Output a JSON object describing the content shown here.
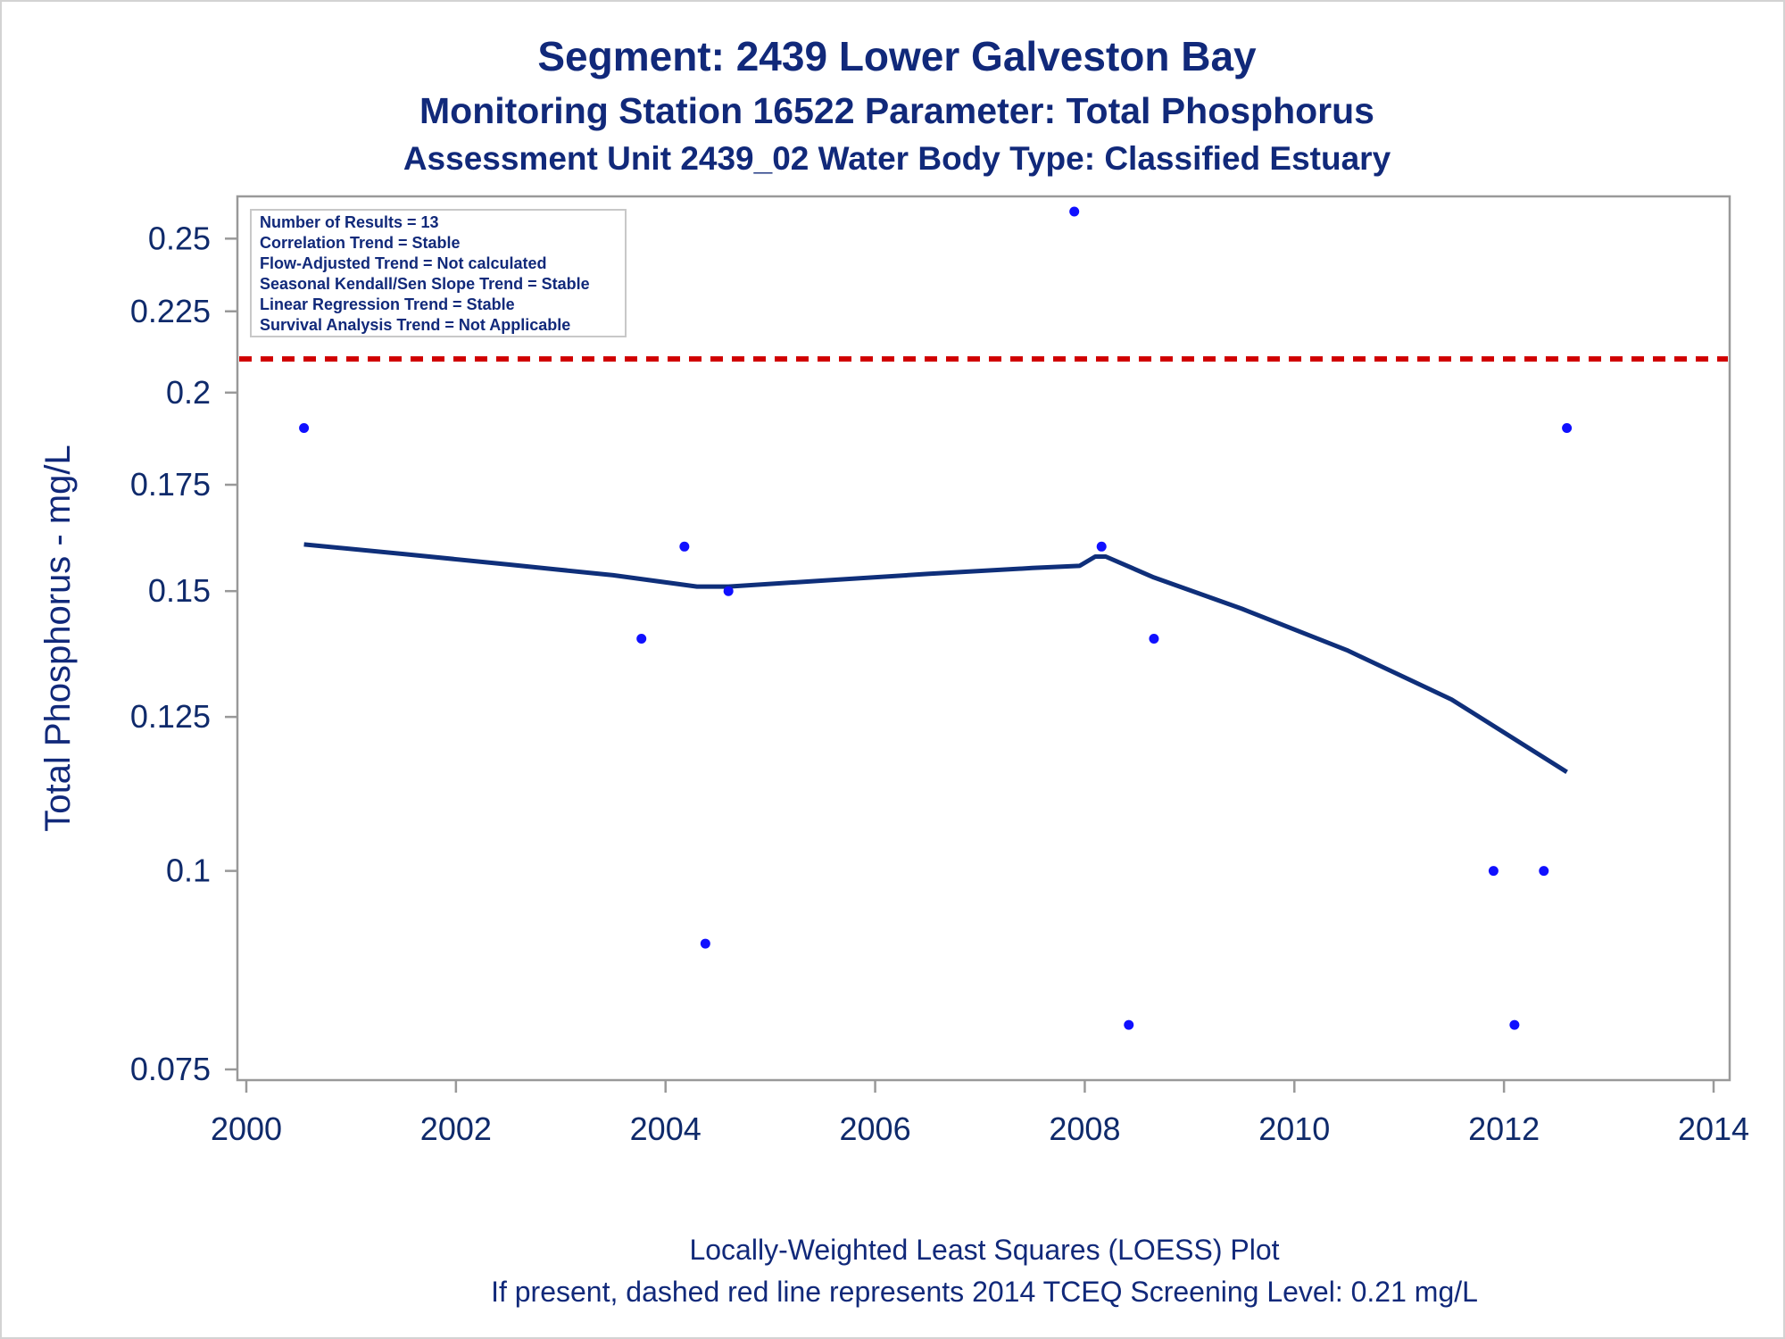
{
  "chart_data": {
    "type": "scatter",
    "title": "Segment: 2439  Lower Galveston Bay",
    "subtitle1": "Monitoring Station 16522 Parameter: Total Phosphorus",
    "subtitle2": "Assessment Unit 2439_02   Water Body Type: Classified Estuary",
    "ylabel": "Total Phosphorus - mg/L",
    "xlabel": "",
    "yscale": "log",
    "xlim": [
      2000,
      2014
    ],
    "ylim": [
      0.075,
      0.26
    ],
    "x_ticks": [
      "2000",
      "2002",
      "2004",
      "2006",
      "2008",
      "2010",
      "2012",
      "2014"
    ],
    "y_ticks": [
      "0.075",
      "0.1",
      "0.125",
      "0.15",
      "0.175",
      "0.2",
      "0.225",
      "0.25"
    ],
    "series": [
      {
        "type": "scatter",
        "color": "#1010ff",
        "points": [
          {
            "x": 2000.55,
            "y": 0.19
          },
          {
            "x": 2003.77,
            "y": 0.14
          },
          {
            "x": 2004.18,
            "y": 0.16
          },
          {
            "x": 2004.38,
            "y": 0.09
          },
          {
            "x": 2004.6,
            "y": 0.15
          },
          {
            "x": 2007.9,
            "y": 0.26
          },
          {
            "x": 2008.16,
            "y": 0.16
          },
          {
            "x": 2008.42,
            "y": 0.08
          },
          {
            "x": 2008.66,
            "y": 0.14
          },
          {
            "x": 2011.9,
            "y": 0.1
          },
          {
            "x": 2012.1,
            "y": 0.08
          },
          {
            "x": 2012.38,
            "y": 0.1
          },
          {
            "x": 2012.6,
            "y": 0.19
          }
        ]
      },
      {
        "type": "line",
        "color": "#0f2f7a",
        "points": [
          {
            "x": 2000.55,
            "y": 0.1605
          },
          {
            "x": 2001.5,
            "y": 0.1583
          },
          {
            "x": 2002.5,
            "y": 0.1559
          },
          {
            "x": 2003.5,
            "y": 0.1535
          },
          {
            "x": 2004.3,
            "y": 0.151
          },
          {
            "x": 2004.6,
            "y": 0.151
          },
          {
            "x": 2005.5,
            "y": 0.1523
          },
          {
            "x": 2006.5,
            "y": 0.1538
          },
          {
            "x": 2007.5,
            "y": 0.1551
          },
          {
            "x": 2007.95,
            "y": 0.1556
          },
          {
            "x": 2008.1,
            "y": 0.1577
          },
          {
            "x": 2008.2,
            "y": 0.1577
          },
          {
            "x": 2008.66,
            "y": 0.153
          },
          {
            "x": 2009.5,
            "y": 0.1462
          },
          {
            "x": 2010.5,
            "y": 0.1377
          },
          {
            "x": 2011.5,
            "y": 0.1282
          },
          {
            "x": 2012.6,
            "y": 0.1154
          }
        ]
      }
    ],
    "reference_line": {
      "y": 0.21,
      "color": "#d00000",
      "style": "dashed"
    },
    "info_box": {
      "placement": "top-left",
      "lines": [
        "Number of Results = 13",
        "Correlation Trend = Stable",
        "Flow-Adjusted Trend = Not calculated",
        "Seasonal Kendall/Sen Slope Trend = Stable",
        "Linear Regression Trend = Stable",
        "Survival Analysis Trend = Not Applicable"
      ]
    },
    "footnotes": [
      "Locally-Weighted Least Squares (LOESS) Plot",
      "If present, dashed red line represents 2014 TCEQ Screening Level: 0.21 mg/L"
    ]
  }
}
